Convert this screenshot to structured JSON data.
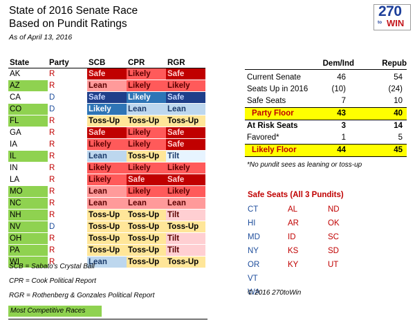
{
  "title_line1": "State of 2016 Senate Race",
  "title_line2": "Based on Pundit Ratings",
  "as_of": "As of April 13, 2016",
  "logo": {
    "number": "270",
    "to": "to",
    "win": "WIN"
  },
  "headers": {
    "state": "State",
    "party": "Party",
    "r1": "SCB",
    "r2": "CPR",
    "r3": "RGR"
  },
  "rows": [
    {
      "state": "AK",
      "party": "R",
      "hl": false,
      "ratings": [
        [
          "Safe",
          "safeR"
        ],
        [
          "Likely",
          "likelyR"
        ],
        [
          "Safe",
          "safeR"
        ]
      ]
    },
    {
      "state": "AZ",
      "party": "R",
      "hl": true,
      "ratings": [
        [
          "Lean",
          "leanR"
        ],
        [
          "Likely",
          "likelyR"
        ],
        [
          "Likely",
          "likelyR"
        ]
      ]
    },
    {
      "state": "CA",
      "party": "D",
      "hl": false,
      "ratings": [
        [
          "Safe",
          "safeD"
        ],
        [
          "Likely",
          "likelyD"
        ],
        [
          "Safe",
          "safeD"
        ]
      ]
    },
    {
      "state": "CO",
      "party": "D",
      "hl": true,
      "ratings": [
        [
          "Likely",
          "likelyD"
        ],
        [
          "Lean",
          "leanD"
        ],
        [
          "Lean",
          "leanD"
        ]
      ]
    },
    {
      "state": "FL",
      "party": "R",
      "hl": true,
      "ratings": [
        [
          "Toss-Up",
          "toss"
        ],
        [
          "Toss-Up",
          "toss"
        ],
        [
          "Toss-Up",
          "toss"
        ]
      ]
    },
    {
      "state": "GA",
      "party": "R",
      "hl": false,
      "ratings": [
        [
          "Safe",
          "safeR"
        ],
        [
          "Likely",
          "likelyR"
        ],
        [
          "Safe",
          "safeR"
        ]
      ]
    },
    {
      "state": "IA",
      "party": "R",
      "hl": false,
      "ratings": [
        [
          "Likely",
          "likelyR"
        ],
        [
          "Likely",
          "likelyR"
        ],
        [
          "Safe",
          "safeR"
        ]
      ]
    },
    {
      "state": "IL",
      "party": "R",
      "hl": true,
      "ratings": [
        [
          "Lean",
          "leanD"
        ],
        [
          "Toss-Up",
          "toss"
        ],
        [
          "Tilt",
          "tiltD"
        ]
      ]
    },
    {
      "state": "IN",
      "party": "R",
      "hl": false,
      "ratings": [
        [
          "Likely",
          "likelyR"
        ],
        [
          "Likely",
          "likelyR"
        ],
        [
          "Likely",
          "likelyR"
        ]
      ]
    },
    {
      "state": "LA",
      "party": "R",
      "hl": false,
      "ratings": [
        [
          "Likely",
          "likelyR"
        ],
        [
          "Safe",
          "safeR"
        ],
        [
          "Safe",
          "safeR"
        ]
      ]
    },
    {
      "state": "MO",
      "party": "R",
      "hl": true,
      "ratings": [
        [
          "Lean",
          "leanR"
        ],
        [
          "Likely",
          "likelyR"
        ],
        [
          "Likely",
          "likelyR"
        ]
      ]
    },
    {
      "state": "NC",
      "party": "R",
      "hl": true,
      "ratings": [
        [
          "Lean",
          "leanR"
        ],
        [
          "Lean",
          "leanR"
        ],
        [
          "Lean",
          "leanR"
        ]
      ]
    },
    {
      "state": "NH",
      "party": "R",
      "hl": true,
      "ratings": [
        [
          "Toss-Up",
          "toss"
        ],
        [
          "Toss-Up",
          "toss"
        ],
        [
          "Tilt",
          "tiltR"
        ]
      ]
    },
    {
      "state": "NV",
      "party": "D",
      "hl": true,
      "ratings": [
        [
          "Toss-Up",
          "toss"
        ],
        [
          "Toss-Up",
          "toss"
        ],
        [
          "Toss-Up",
          "toss"
        ]
      ]
    },
    {
      "state": "OH",
      "party": "R",
      "hl": true,
      "ratings": [
        [
          "Toss-Up",
          "toss"
        ],
        [
          "Toss-Up",
          "toss"
        ],
        [
          "Tilt",
          "tiltR"
        ]
      ]
    },
    {
      "state": "PA",
      "party": "R",
      "hl": true,
      "ratings": [
        [
          "Toss-Up",
          "toss"
        ],
        [
          "Toss-Up",
          "toss"
        ],
        [
          "Tilt",
          "tiltR"
        ]
      ]
    },
    {
      "state": "WI",
      "party": "R",
      "hl": true,
      "ratings": [
        [
          "Lean",
          "leanD"
        ],
        [
          "Toss-Up",
          "toss"
        ],
        [
          "Toss-Up",
          "toss"
        ]
      ]
    }
  ],
  "summary": {
    "col1": "Dem/Ind",
    "col2": "Repub",
    "current_senate": {
      "label": "Current Senate",
      "d": "46",
      "r": "54"
    },
    "seats_up": {
      "label": "Seats Up in 2016",
      "d": "(10)",
      "r": "(24)"
    },
    "safe_seats": {
      "label": "Safe Seats",
      "d": "7",
      "r": "10"
    },
    "party_floor": {
      "label": "Party Floor",
      "d": "43",
      "r": "40"
    },
    "at_risk": {
      "label": "At Risk Seats",
      "d": "3",
      "r": "14"
    },
    "favored": {
      "label": "Favored*",
      "d": "1",
      "r": "5"
    },
    "likely_floor": {
      "label": "Likely Floor",
      "d": "44",
      "r": "45"
    },
    "footnote": "*No pundit sees as leaning or toss-up"
  },
  "safe_seats_title": "Safe Seats (All 3 Pundits)",
  "safe_dem": [
    "CT",
    "HI",
    "MD",
    "NY",
    "OR",
    "VT",
    "WA"
  ],
  "safe_rep1": [
    "AL",
    "AR",
    "ID",
    "KS",
    "KY"
  ],
  "safe_rep2": [
    "ND",
    "OK",
    "SC",
    "SD",
    "UT"
  ],
  "copyright": "© 2016 270toWin",
  "legend": {
    "scb": "SCB = Sabato's Crystal Ball",
    "cpr": "CPR = Cook Political Report",
    "rgr": "RGR = Rothenberg & Gonzales Political Report",
    "competitive": "Most Competitive Races"
  },
  "colors": {
    "safeR": "#c00000",
    "likelyR": "#ff5a5a",
    "leanR": "#ff9a9a",
    "tiltR": "#ffcfd2",
    "toss": "#ffe699",
    "tiltD": "#e7f4ff",
    "leanD": "#bdd7ee",
    "likelyD": "#2e75b6",
    "safeD": "#1f3f8a",
    "competitive": "#8fd250",
    "floor": "#ffff00"
  }
}
